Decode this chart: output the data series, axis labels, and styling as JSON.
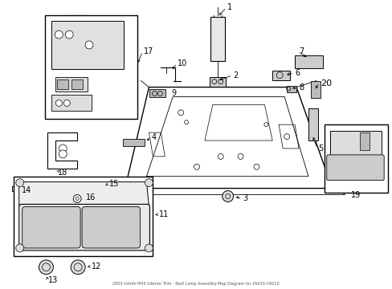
{
  "bg": "#ffffff",
  "lc": "#000000",
  "figsize": [
    4.89,
    3.6
  ],
  "dpi": 100,
  "title": "2003 Infiniti M45 Interior Trim - Roof Lamp Assembly-Map Diagram for 26430-CR010"
}
